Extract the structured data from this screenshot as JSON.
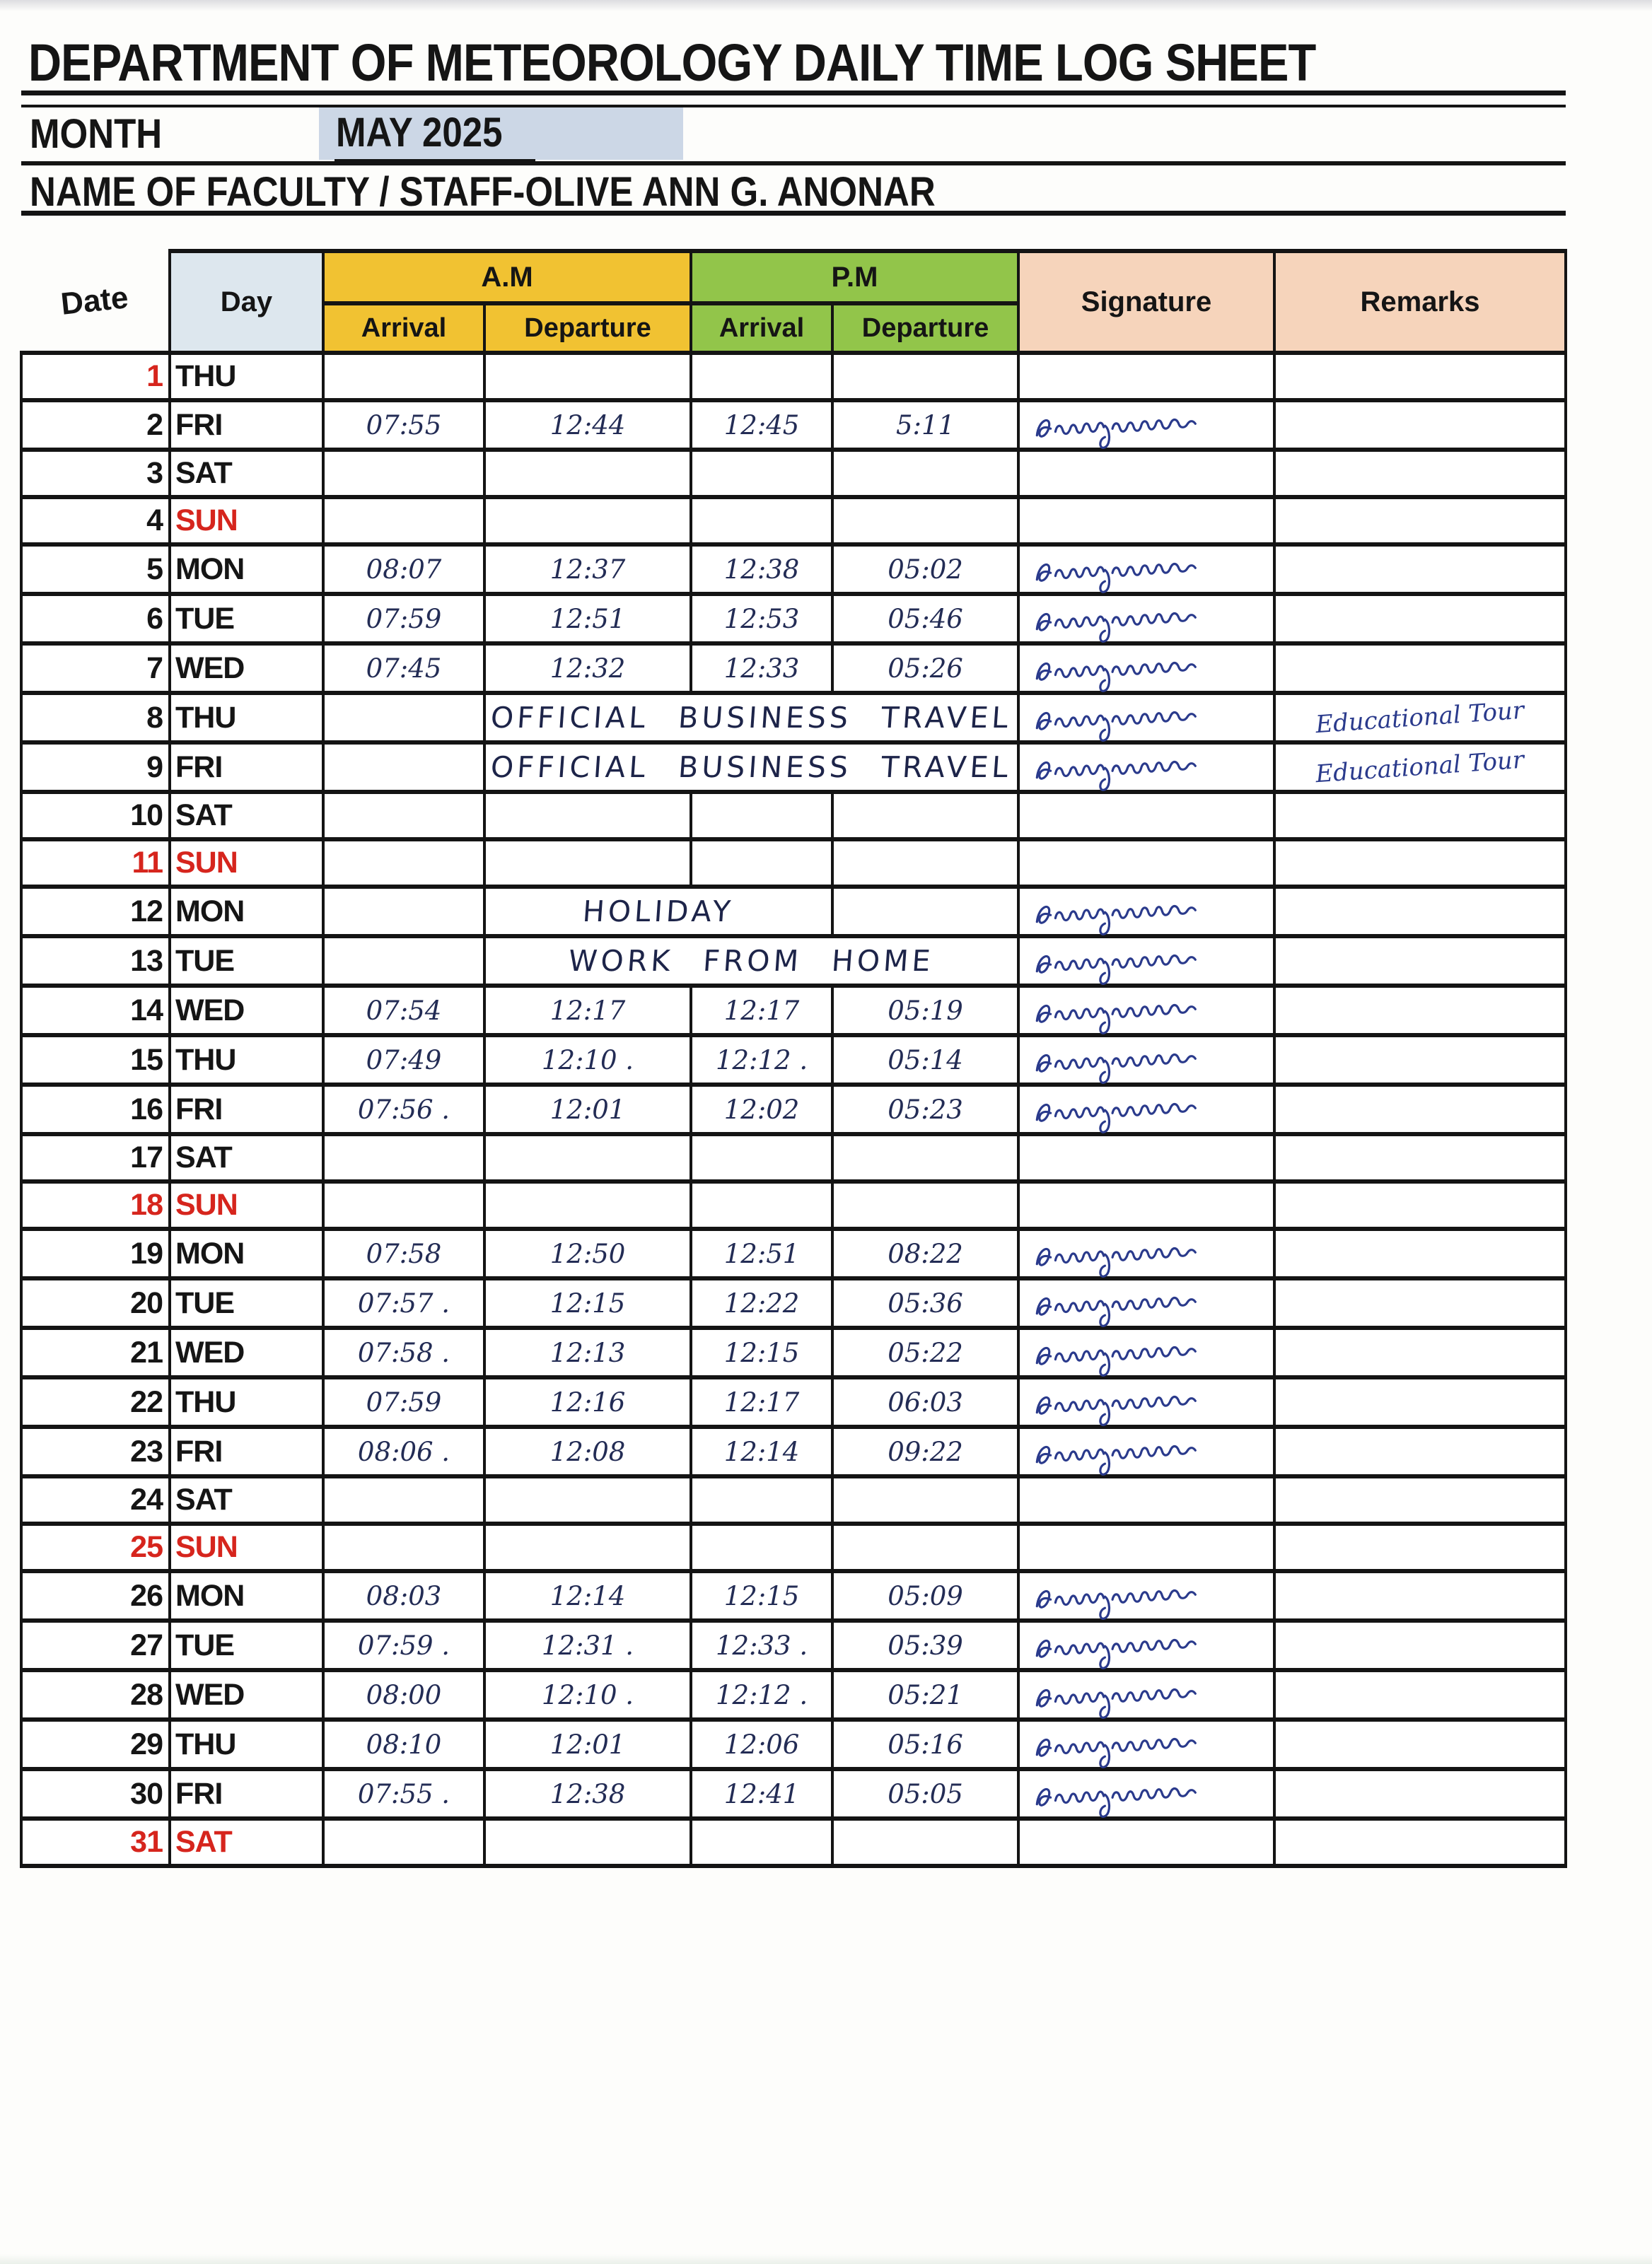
{
  "colors": {
    "line": "#141414",
    "am_header": "#f1c232",
    "pm_header": "#92c54a",
    "day_header": "#dde7ee",
    "sig_header": "#f6d4bb",
    "month_highlight": "#ccd7e6",
    "red": "#d6251d",
    "ink": "#232c55",
    "ink_dark": "#1d2449",
    "ink_sig": "#2a3a8c"
  },
  "header": {
    "title": "DEPARTMENT OF METEOROLOGY DAILY TIME LOG SHEET",
    "month_label": "MONTH",
    "month_value": "MAY  2025",
    "name_line": "NAME OF FACULTY / STAFF-OLIVE ANN G. ANONAR"
  },
  "table": {
    "columns": {
      "date": "Date",
      "day": "Day",
      "am": "A.M",
      "pm": "P.M",
      "am_arrival": "Arrival",
      "am_departure": "Departure",
      "pm_arrival": "Arrival",
      "pm_departure": "Departure",
      "signature": "Signature",
      "remarks": "Remarks"
    },
    "rows": [
      {
        "date": "1",
        "day": "THU",
        "date_red": true,
        "am_arr": "",
        "am_dep": "",
        "pm_arr": "",
        "pm_dep": "",
        "signed": false,
        "remarks": ""
      },
      {
        "date": "2",
        "day": "FRI",
        "am_arr": "07:55",
        "am_dep": "12:44",
        "pm_arr": "12:45",
        "pm_dep": "5:11",
        "signed": true,
        "remarks": ""
      },
      {
        "date": "3",
        "day": "SAT",
        "am_arr": "",
        "am_dep": "",
        "pm_arr": "",
        "pm_dep": "",
        "signed": false,
        "remarks": ""
      },
      {
        "date": "4",
        "day": "SUN",
        "day_red": true,
        "am_arr": "",
        "am_dep": "",
        "pm_arr": "",
        "pm_dep": "",
        "signed": false,
        "remarks": ""
      },
      {
        "date": "5",
        "day": "MON",
        "am_arr": "08:07",
        "am_dep": "12:37",
        "pm_arr": "12:38",
        "pm_dep": "05:02",
        "signed": true,
        "remarks": ""
      },
      {
        "date": "6",
        "day": "TUE",
        "am_arr": "07:59",
        "am_dep": "12:51",
        "pm_arr": "12:53",
        "pm_dep": "05:46",
        "signed": true,
        "remarks": ""
      },
      {
        "date": "7",
        "day": "WED",
        "am_arr": "07:45",
        "am_dep": "12:32",
        "pm_arr": "12:33",
        "pm_dep": "05:26",
        "signed": true,
        "remarks": ""
      },
      {
        "date": "8",
        "day": "THU",
        "span_text": "OFFICIAL  BUSINESS  TRAVEL",
        "span_cols": 3,
        "signed": true,
        "remarks": "Educational Tour"
      },
      {
        "date": "9",
        "day": "FRI",
        "span_text": "OFFICIAL  BUSINESS  TRAVEL",
        "span_cols": 3,
        "signed": true,
        "remarks": "Educational Tour"
      },
      {
        "date": "10",
        "day": "SAT",
        "am_arr": "",
        "am_dep": "",
        "pm_arr": "",
        "pm_dep": "",
        "signed": false,
        "remarks": ""
      },
      {
        "date": "11",
        "day": "SUN",
        "date_red": true,
        "day_red": true,
        "am_arr": "",
        "am_dep": "",
        "pm_arr": "",
        "pm_dep": "",
        "signed": false,
        "remarks": ""
      },
      {
        "date": "12",
        "day": "MON",
        "span_text": "HOLIDAY",
        "span_cols": 2,
        "signed": true,
        "remarks": ""
      },
      {
        "date": "13",
        "day": "TUE",
        "span_text": "WORK  FROM  HOME",
        "span_cols": 3,
        "signed": true,
        "remarks": ""
      },
      {
        "date": "14",
        "day": "WED",
        "am_arr": "07:54",
        "am_dep": "12:17",
        "pm_arr": "12:17",
        "pm_dep": "05:19",
        "signed": true,
        "remarks": ""
      },
      {
        "date": "15",
        "day": "THU",
        "am_arr": "07:49",
        "am_dep": "12:10 .",
        "pm_arr": "12:12 .",
        "pm_dep": "05:14",
        "signed": true,
        "remarks": ""
      },
      {
        "date": "16",
        "day": "FRI",
        "am_arr": "07:56 .",
        "am_dep": "12:01",
        "pm_arr": "12:02",
        "pm_dep": "05:23",
        "signed": true,
        "remarks": ""
      },
      {
        "date": "17",
        "day": "SAT",
        "am_arr": "",
        "am_dep": "",
        "pm_arr": "",
        "pm_dep": "",
        "signed": false,
        "remarks": ""
      },
      {
        "date": "18",
        "day": "SUN",
        "date_red": true,
        "day_red": true,
        "am_arr": "",
        "am_dep": "",
        "pm_arr": "",
        "pm_dep": "",
        "signed": false,
        "remarks": ""
      },
      {
        "date": "19",
        "day": "MON",
        "am_arr": "07:58",
        "am_dep": "12:50",
        "pm_arr": "12:51",
        "pm_dep": "08:22",
        "signed": true,
        "remarks": ""
      },
      {
        "date": "20",
        "day": "TUE",
        "am_arr": "07:57 .",
        "am_dep": "12:15",
        "pm_arr": "12:22",
        "pm_dep": "05:36",
        "signed": true,
        "remarks": ""
      },
      {
        "date": "21",
        "day": "WED",
        "am_arr": "07:58 .",
        "am_dep": "12:13",
        "pm_arr": "12:15",
        "pm_dep": "05:22",
        "signed": true,
        "remarks": ""
      },
      {
        "date": "22",
        "day": "THU",
        "am_arr": "07:59",
        "am_dep": "12:16",
        "pm_arr": "12:17",
        "pm_dep": "06:03",
        "signed": true,
        "remarks": ""
      },
      {
        "date": "23",
        "day": "FRI",
        "am_arr": "08:06 .",
        "am_dep": "12:08",
        "pm_arr": "12:14",
        "pm_dep": "09:22",
        "signed": true,
        "remarks": ""
      },
      {
        "date": "24",
        "day": "SAT",
        "am_arr": "",
        "am_dep": "",
        "pm_arr": "",
        "pm_dep": "",
        "signed": false,
        "remarks": ""
      },
      {
        "date": "25",
        "day": "SUN",
        "date_red": true,
        "day_red": true,
        "am_arr": "",
        "am_dep": "",
        "pm_arr": "",
        "pm_dep": "",
        "signed": false,
        "remarks": ""
      },
      {
        "date": "26",
        "day": "MON",
        "am_arr": "08:03",
        "am_dep": "12:14",
        "pm_arr": "12:15",
        "pm_dep": "05:09",
        "signed": true,
        "remarks": ""
      },
      {
        "date": "27",
        "day": "TUE",
        "am_arr": "07:59 .",
        "am_dep": "12:31 .",
        "pm_arr": "12:33 .",
        "pm_dep": "05:39",
        "signed": true,
        "remarks": ""
      },
      {
        "date": "28",
        "day": "WED",
        "am_arr": "08:00",
        "am_dep": "12:10 .",
        "pm_arr": "12:12 .",
        "pm_dep": "05:21",
        "signed": true,
        "remarks": ""
      },
      {
        "date": "29",
        "day": "THU",
        "am_arr": "08:10",
        "am_dep": "12:01",
        "pm_arr": "12:06",
        "pm_dep": "05:16",
        "signed": true,
        "remarks": ""
      },
      {
        "date": "30",
        "day": "FRI",
        "am_arr": "07:55 .",
        "am_dep": "12:38",
        "pm_arr": "12:41",
        "pm_dep": "05:05",
        "signed": true,
        "remarks": ""
      },
      {
        "date": "31",
        "day": "SAT",
        "date_red": true,
        "day_red": true,
        "am_arr": "",
        "am_dep": "",
        "pm_arr": "",
        "pm_dep": "",
        "signed": false,
        "remarks": ""
      }
    ]
  }
}
